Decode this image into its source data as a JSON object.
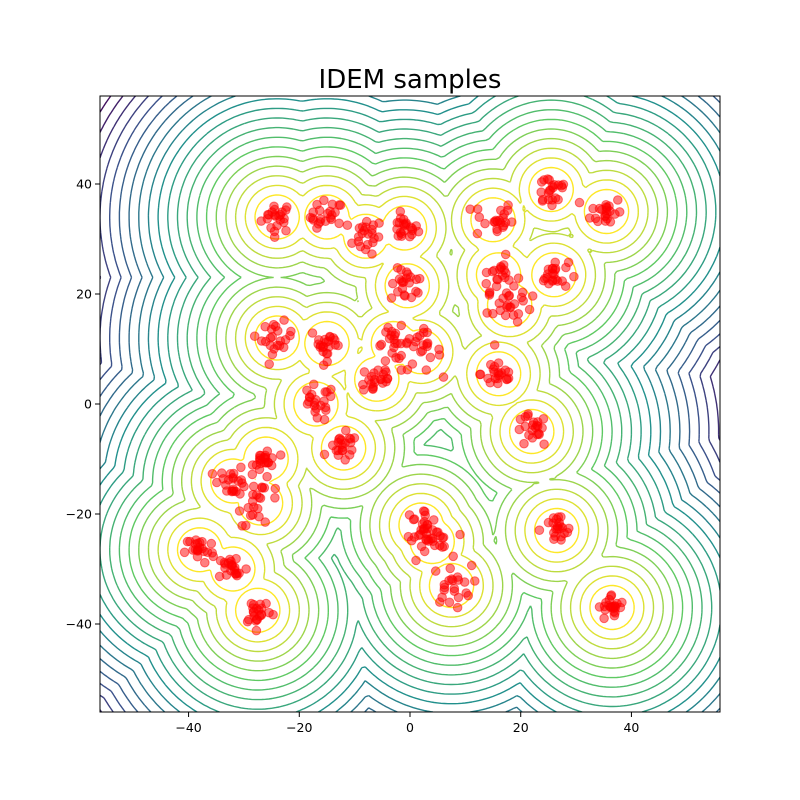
{
  "chart_data": {
    "type": "scatter",
    "title": "IDEM samples",
    "xlabel": "",
    "ylabel": "",
    "xlim": [
      -56,
      56
    ],
    "ylim": [
      -56,
      56
    ],
    "x_ticks": [
      -40,
      -20,
      0,
      20,
      40
    ],
    "y_ticks": [
      -40,
      -20,
      0,
      20,
      40
    ],
    "x_tick_labels": [
      "−40",
      "−20",
      "0",
      "20",
      "40"
    ],
    "y_tick_labels": [
      "−40",
      "−20",
      "0",
      "20",
      "40"
    ],
    "grid": false,
    "background": "contour",
    "colors": {
      "samples": "#ff0000",
      "contour_low": "#440154",
      "contour_high": "#fde725"
    },
    "mode_centers": [
      {
        "x": -24,
        "y": 34,
        "r": 1.4
      },
      {
        "x": -15,
        "y": 34,
        "r": 1.5
      },
      {
        "x": -8,
        "y": 30.5,
        "r": 1.6
      },
      {
        "x": -1,
        "y": 32,
        "r": 1.2
      },
      {
        "x": -0.5,
        "y": 21.5,
        "r": 1.5
      },
      {
        "x": 15,
        "y": 33.5,
        "r": 1.8
      },
      {
        "x": 25.5,
        "y": 39,
        "r": 1.7
      },
      {
        "x": 35.5,
        "y": 35,
        "r": 1.4
      },
      {
        "x": 16,
        "y": 23.5,
        "r": 1.6
      },
      {
        "x": 18,
        "y": 18,
        "r": 2.0
      },
      {
        "x": 26,
        "y": 23.5,
        "r": 1.3
      },
      {
        "x": -24,
        "y": 12,
        "r": 1.4
      },
      {
        "x": -15,
        "y": 11,
        "r": 1.5
      },
      {
        "x": -3,
        "y": 11,
        "r": 1.5
      },
      {
        "x": 2,
        "y": 9.5,
        "r": 1.8
      },
      {
        "x": -6,
        "y": 4.5,
        "r": 1.6
      },
      {
        "x": 16,
        "y": 5.5,
        "r": 1.6
      },
      {
        "x": -17,
        "y": 0,
        "r": 1.7
      },
      {
        "x": 22,
        "y": -5,
        "r": 1.5
      },
      {
        "x": -12,
        "y": -8,
        "r": 1.3
      },
      {
        "x": -26,
        "y": -10,
        "r": 1.1
      },
      {
        "x": -32,
        "y": -14,
        "r": 1.3
      },
      {
        "x": -27,
        "y": -18,
        "r": 2.0
      },
      {
        "x": 2,
        "y": -22,
        "r": 1.6
      },
      {
        "x": 4,
        "y": -25,
        "r": 1.6
      },
      {
        "x": 7.5,
        "y": -33,
        "r": 1.8
      },
      {
        "x": 26.5,
        "y": -23,
        "r": 1.5
      },
      {
        "x": -38,
        "y": -26.5,
        "r": 1.3
      },
      {
        "x": -32,
        "y": -30,
        "r": 1.4
      },
      {
        "x": -27.5,
        "y": -37.5,
        "r": 1.3
      },
      {
        "x": 36.5,
        "y": -37,
        "r": 1.2
      }
    ],
    "samples_per_mode": 22
  }
}
